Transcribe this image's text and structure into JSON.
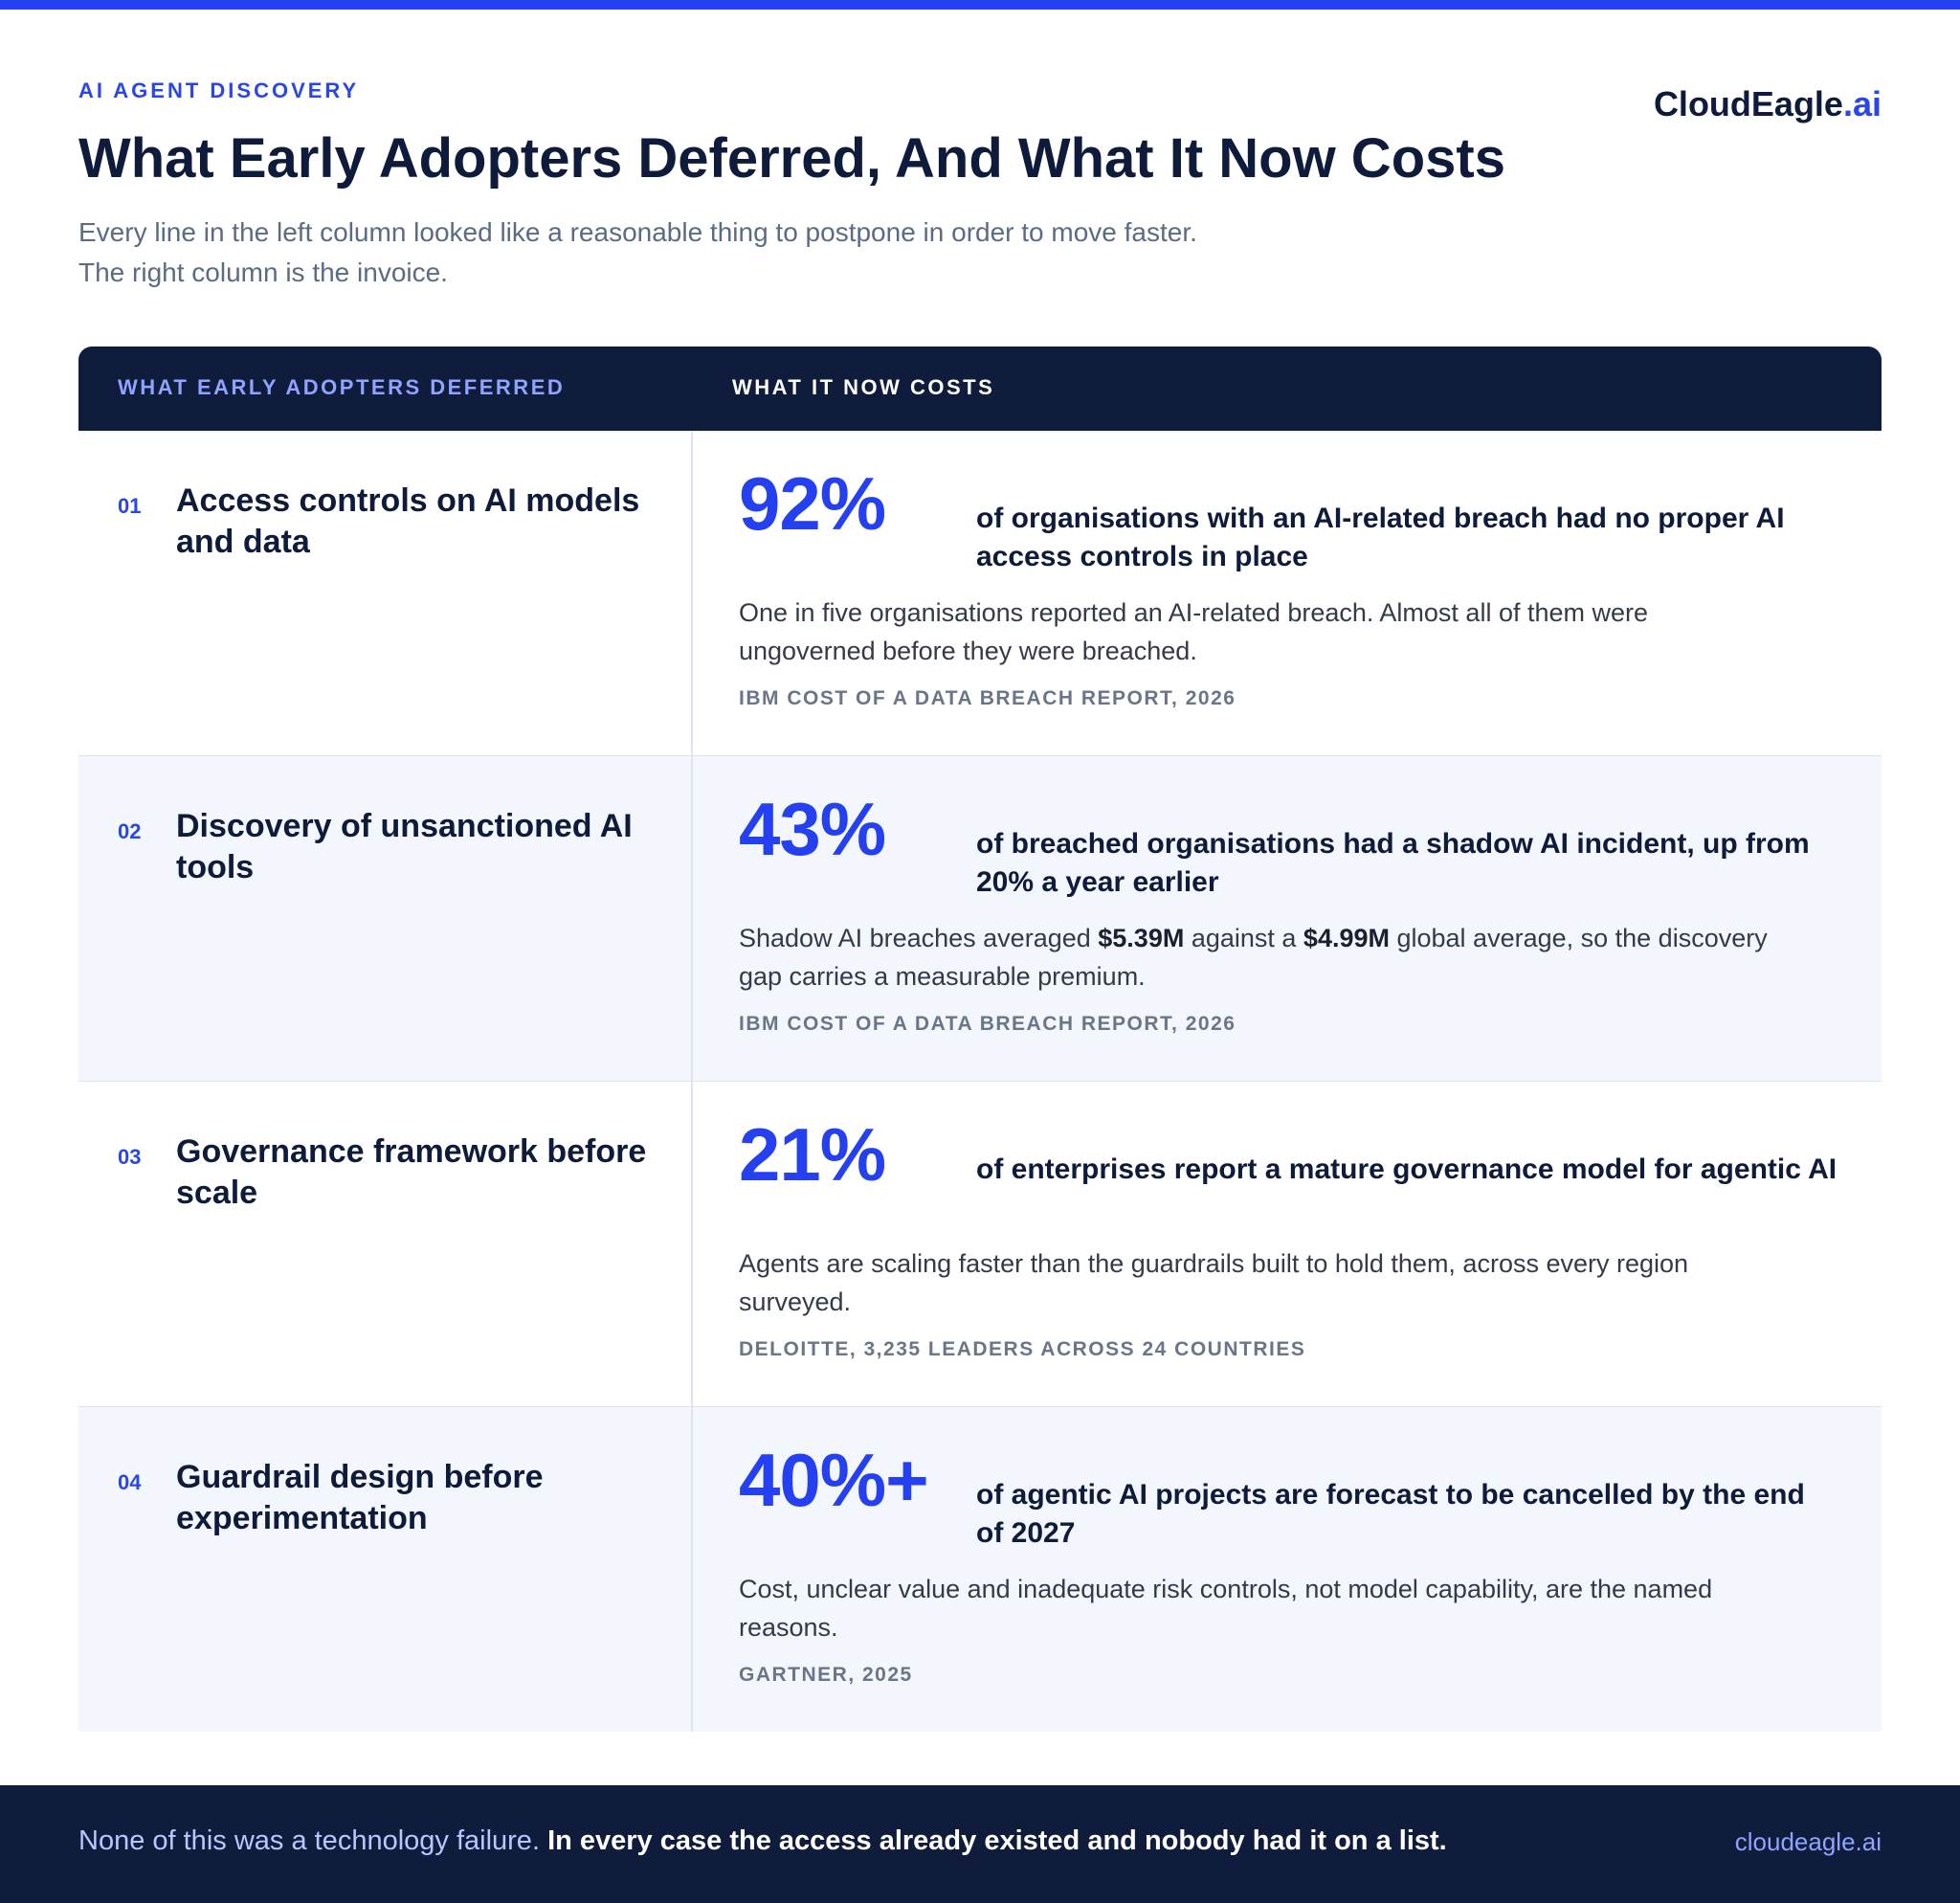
{
  "header": {
    "eyebrow": "AI AGENT DISCOVERY",
    "brand_name": "CloudEagle",
    "brand_suffix": ".ai",
    "title": "What Early Adopters Deferred, And What It Now Costs",
    "subtitle_line1": "Every line in the left column looked like a reasonable thing to postpone in order to move faster.",
    "subtitle_line2": "The right column is the invoice."
  },
  "table": {
    "col1_header": "WHAT EARLY ADOPTERS DEFERRED",
    "col2_header": "WHAT IT NOW COSTS",
    "rows": [
      {
        "num": "01",
        "deferred": "Access controls on AI models and data",
        "stat": "92%",
        "headline": "of organisations with an AI-related breach had no proper AI access controls in place",
        "detail": "One in five organisations reported an AI-related breach. Almost all of them were ungoverned before they were breached.",
        "source": "IBM COST OF A DATA BREACH REPORT, 2026"
      },
      {
        "num": "02",
        "deferred": "Discovery of unsanctioned AI tools",
        "stat": "43%",
        "headline": "of breached organisations had a shadow AI incident, up from 20% a year earlier",
        "detail_a": "Shadow AI breaches averaged ",
        "detail_b": "$5.39M",
        "detail_c": " against a ",
        "detail_d": "$4.99M",
        "detail_e": " global average, so the discovery gap carries a measurable premium.",
        "source": "IBM COST OF A DATA BREACH REPORT, 2026"
      },
      {
        "num": "03",
        "deferred": "Governance framework before scale",
        "stat": "21%",
        "headline": "of enterprises report a mature governance model for agentic AI",
        "detail": "Agents are scaling faster than the guardrails built to hold them, across every region surveyed.",
        "source": "DELOITTE, 3,235 LEADERS ACROSS 24 COUNTRIES"
      },
      {
        "num": "04",
        "deferred": "Guardrail design before experimentation",
        "stat": "40%+",
        "headline": "of agentic AI projects are forecast to be cancelled by the end of 2027",
        "detail": "Cost, unclear value and inadequate risk controls, not model capability, are the named reasons.",
        "source": "GARTNER, 2025"
      }
    ]
  },
  "footer": {
    "lead": "None of this was a technology failure. ",
    "emphasis": "In every case the access already existed and nobody had it on a list.",
    "url": "cloudeagle.ai"
  },
  "colors": {
    "accent": "#2440f0",
    "navy": "#0f1c3c",
    "alt_row": "#f3f6fd"
  }
}
